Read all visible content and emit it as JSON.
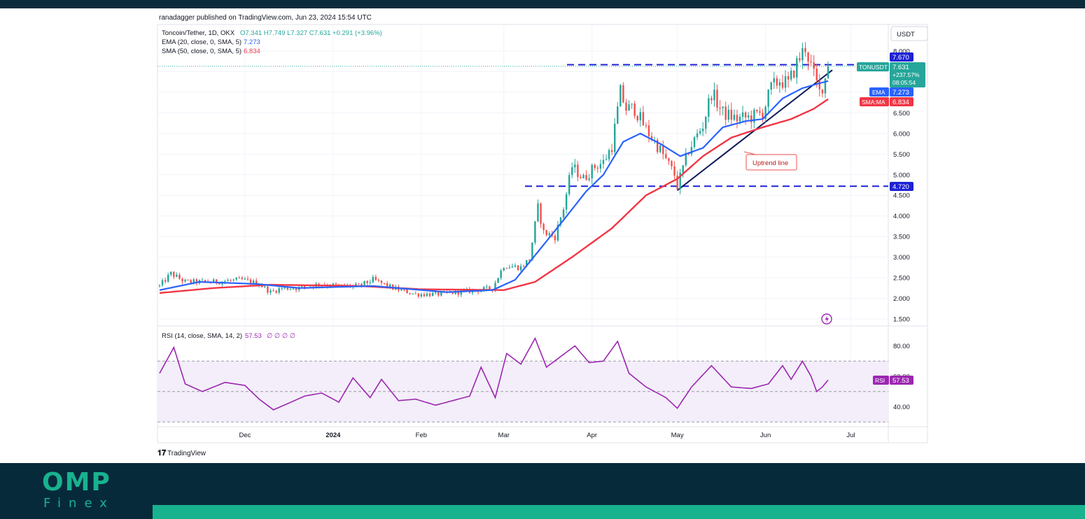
{
  "header": {
    "published": "ranadagger published on TradingView.com, Jun 23, 2024 15:54 UTC"
  },
  "legend": {
    "symbol": "Toncoin/Tether, 1D, OKX",
    "ohlc": "O7.341  H7.749  L7.327  C7.631  +0.291 (+3.96%)",
    "ema": "EMA (20, close, 0, SMA, 5)",
    "ema_value": "7.273",
    "sma": "SMA (50, close, 0, SMA, 5)",
    "sma_value": "6.834",
    "rsi": "RSI (14, close, SMA, 14, 2)",
    "rsi_value": "57.53",
    "rsi_extra": "∅ ∅ ∅ ∅"
  },
  "currency": "USDT",
  "badges": {
    "resistance": "7.670",
    "ticker_name": "TONUSDT",
    "ticker_price": "7.631",
    "ticker_change": "+237.57%",
    "ticker_countdown": "08:05:54",
    "ema_label": "EMA",
    "ema_value": "7.273",
    "sma_label": "SMA:MA",
    "sma_value": "6.834",
    "support": "4.720",
    "rsi_label": "RSI",
    "rsi_value": "57.53"
  },
  "annotation": "Uptrend line",
  "watermark": "TradingView",
  "brand": {
    "top": "OMP",
    "bottom": "Finex"
  },
  "colors": {
    "bull": "#26a69a",
    "bear": "#ef5350",
    "ema": "#2962ff",
    "sma": "#f23645",
    "rsi": "#9c27b0",
    "level": "#1e22d6",
    "trendline": "#0f1a5a",
    "brand": "#18b28f",
    "brand_dark": "#072a3b"
  },
  "chart_data": {
    "type": "candlestick",
    "title": "Toncoin/Tether, 1D, OKX",
    "x_ticks": [
      "Dec",
      "2024",
      "Feb",
      "Mar",
      "Apr",
      "May",
      "Jun",
      "Jul"
    ],
    "y_ticks": [
      "8.000",
      "7.500",
      "7.000",
      "6.500",
      "6.000",
      "5.500",
      "5.000",
      "4.500",
      "4.000",
      "3.500",
      "3.000",
      "2.500",
      "2.000",
      "1.500"
    ],
    "ylim": [
      1.4,
      8.3
    ],
    "date_range": [
      "2023-11-01",
      "2024-06-23"
    ],
    "ohlc_anchors": [
      [
        "2023-11-01",
        2.3
      ],
      [
        "2023-11-05",
        2.6
      ],
      [
        "2023-11-10",
        2.4
      ],
      [
        "2023-11-20",
        2.4
      ],
      [
        "2023-11-30",
        2.45
      ],
      [
        "2023-12-06",
        2.35
      ],
      [
        "2023-12-10",
        2.15
      ],
      [
        "2023-12-14",
        2.25
      ],
      [
        "2023-12-20",
        2.25
      ],
      [
        "2023-12-28",
        2.35
      ],
      [
        "2024-01-03",
        2.3
      ],
      [
        "2024-01-10",
        2.3
      ],
      [
        "2024-01-15",
        2.45
      ],
      [
        "2024-01-22",
        2.25
      ],
      [
        "2024-01-30",
        2.1
      ],
      [
        "2024-02-07",
        2.1
      ],
      [
        "2024-02-14",
        2.15
      ],
      [
        "2024-02-21",
        2.2
      ],
      [
        "2024-02-26",
        2.25
      ],
      [
        "2024-03-01",
        2.8
      ],
      [
        "2024-03-07",
        2.75
      ],
      [
        "2024-03-10",
        2.95
      ],
      [
        "2024-03-13",
        4.2
      ],
      [
        "2024-03-15",
        3.6
      ],
      [
        "2024-03-19",
        3.5
      ],
      [
        "2024-03-22",
        4.2
      ],
      [
        "2024-03-25",
        5.2
      ],
      [
        "2024-03-29",
        4.9
      ],
      [
        "2024-04-02",
        5.2
      ],
      [
        "2024-04-05",
        5.3
      ],
      [
        "2024-04-08",
        5.7
      ],
      [
        "2024-04-11",
        7.0
      ],
      [
        "2024-04-13",
        6.6
      ],
      [
        "2024-04-16",
        6.6
      ],
      [
        "2024-04-20",
        6.1
      ],
      [
        "2024-04-25",
        5.6
      ],
      [
        "2024-04-30",
        5.0
      ],
      [
        "2024-05-01",
        4.72
      ],
      [
        "2024-05-05",
        5.6
      ],
      [
        "2024-05-10",
        6.2
      ],
      [
        "2024-05-13",
        7.0
      ],
      [
        "2024-05-17",
        6.5
      ],
      [
        "2024-05-22",
        6.35
      ],
      [
        "2024-05-27",
        6.4
      ],
      [
        "2024-05-31",
        6.5
      ],
      [
        "2024-06-03",
        7.1
      ],
      [
        "2024-06-06",
        7.3
      ],
      [
        "2024-06-09",
        7.2
      ],
      [
        "2024-06-12",
        7.7
      ],
      [
        "2024-06-15",
        8.1
      ],
      [
        "2024-06-18",
        7.4
      ],
      [
        "2024-06-20",
        7.0
      ],
      [
        "2024-06-22",
        7.34
      ],
      [
        "2024-06-23",
        7.631
      ]
    ],
    "ema20": [
      [
        "2023-11-01",
        2.2
      ],
      [
        "2023-11-15",
        2.4
      ],
      [
        "2023-12-05",
        2.35
      ],
      [
        "2023-12-20",
        2.25
      ],
      [
        "2024-01-15",
        2.3
      ],
      [
        "2024-02-10",
        2.15
      ],
      [
        "2024-02-26",
        2.2
      ],
      [
        "2024-03-05",
        2.45
      ],
      [
        "2024-03-15",
        3.3
      ],
      [
        "2024-03-22",
        3.9
      ],
      [
        "2024-03-30",
        4.6
      ],
      [
        "2024-04-05",
        5.0
      ],
      [
        "2024-04-12",
        5.8
      ],
      [
        "2024-04-18",
        6.0
      ],
      [
        "2024-04-25",
        5.75
      ],
      [
        "2024-05-02",
        5.45
      ],
      [
        "2024-05-10",
        5.65
      ],
      [
        "2024-05-17",
        6.15
      ],
      [
        "2024-05-25",
        6.3
      ],
      [
        "2024-05-31",
        6.35
      ],
      [
        "2024-06-07",
        6.85
      ],
      [
        "2024-06-14",
        7.1
      ],
      [
        "2024-06-19",
        7.2
      ],
      [
        "2024-06-23",
        7.273
      ]
    ],
    "sma50": [
      [
        "2023-11-01",
        2.13
      ],
      [
        "2023-11-20",
        2.25
      ],
      [
        "2023-12-10",
        2.33
      ],
      [
        "2024-01-10",
        2.3
      ],
      [
        "2024-02-01",
        2.22
      ],
      [
        "2024-03-01",
        2.2
      ],
      [
        "2024-03-12",
        2.4
      ],
      [
        "2024-03-25",
        3.0
      ],
      [
        "2024-04-08",
        3.7
      ],
      [
        "2024-04-20",
        4.5
      ],
      [
        "2024-05-01",
        4.9
      ],
      [
        "2024-05-10",
        5.45
      ],
      [
        "2024-05-20",
        5.9
      ],
      [
        "2024-05-31",
        6.15
      ],
      [
        "2024-06-10",
        6.35
      ],
      [
        "2024-06-18",
        6.6
      ],
      [
        "2024-06-23",
        6.834
      ]
    ],
    "rsi_ticks": [
      "80.00",
      "60.00",
      "40.00"
    ],
    "rsi_range": [
      30,
      90
    ],
    "rsi_bands": [
      30,
      50,
      70
    ],
    "rsi14": [
      [
        "2023-11-01",
        62
      ],
      [
        "2023-11-06",
        79
      ],
      [
        "2023-11-10",
        55
      ],
      [
        "2023-11-16",
        50
      ],
      [
        "2023-11-24",
        56
      ],
      [
        "2023-12-01",
        54
      ],
      [
        "2023-12-06",
        45
      ],
      [
        "2023-12-11",
        38
      ],
      [
        "2023-12-16",
        42
      ],
      [
        "2023-12-22",
        47
      ],
      [
        "2023-12-28",
        49
      ],
      [
        "2024-01-03",
        43
      ],
      [
        "2024-01-08",
        59
      ],
      [
        "2024-01-14",
        46
      ],
      [
        "2024-01-18",
        58
      ],
      [
        "2024-01-24",
        44
      ],
      [
        "2024-01-30",
        45
      ],
      [
        "2024-02-06",
        41
      ],
      [
        "2024-02-12",
        44
      ],
      [
        "2024-02-18",
        47
      ],
      [
        "2024-02-22",
        66
      ],
      [
        "2024-02-27",
        46
      ],
      [
        "2024-03-02",
        75
      ],
      [
        "2024-03-07",
        68
      ],
      [
        "2024-03-12",
        85
      ],
      [
        "2024-03-16",
        66
      ],
      [
        "2024-03-21",
        73
      ],
      [
        "2024-03-26",
        80
      ],
      [
        "2024-03-31",
        69
      ],
      [
        "2024-04-05",
        70
      ],
      [
        "2024-04-10",
        83
      ],
      [
        "2024-04-14",
        62
      ],
      [
        "2024-04-20",
        53
      ],
      [
        "2024-04-27",
        46
      ],
      [
        "2024-05-01",
        39
      ],
      [
        "2024-05-06",
        53
      ],
      [
        "2024-05-13",
        67
      ],
      [
        "2024-05-20",
        53
      ],
      [
        "2024-05-27",
        52
      ],
      [
        "2024-06-02",
        55
      ],
      [
        "2024-06-07",
        67
      ],
      [
        "2024-06-10",
        58
      ],
      [
        "2024-06-14",
        70
      ],
      [
        "2024-06-17",
        60
      ],
      [
        "2024-06-19",
        50
      ],
      [
        "2024-06-21",
        53
      ],
      [
        "2024-06-23",
        57.53
      ]
    ],
    "levels": {
      "resistance": 7.67,
      "support": 4.72
    },
    "trendline": [
      [
        "2024-05-01",
        4.62
      ],
      [
        "2024-06-23",
        7.46
      ]
    ]
  }
}
